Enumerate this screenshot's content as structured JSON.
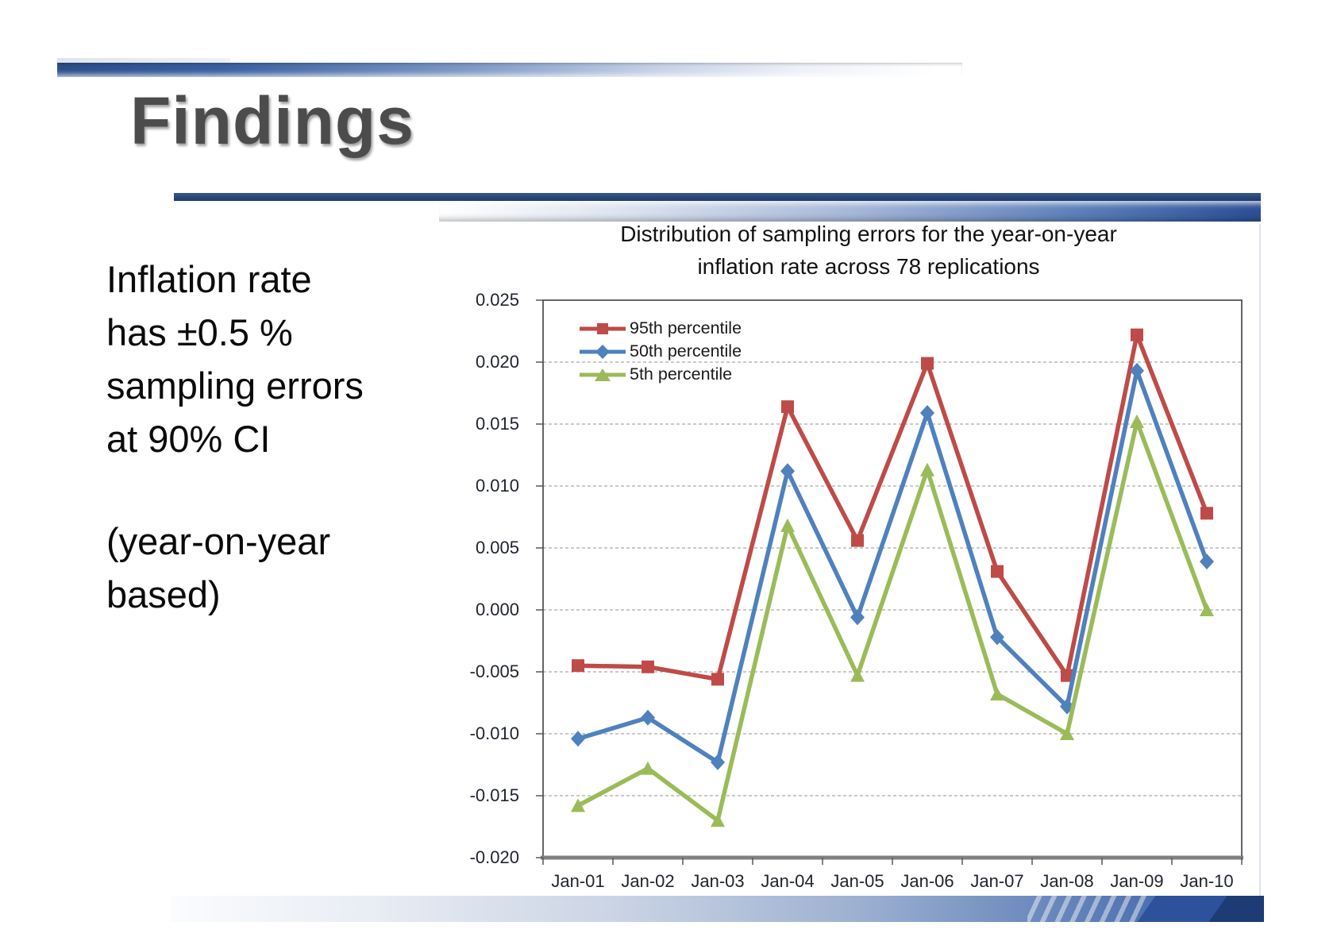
{
  "slide": {
    "title": "Findings",
    "body_text_1": {
      "lines": [
        "Inflation rate",
        "has ±0.5 %",
        "sampling errors",
        "at 90% CI"
      ]
    },
    "body_text_2": {
      "lines": [
        "(year-on-year",
        "based)"
      ]
    },
    "accent_colors": {
      "navy": "#1f3864",
      "mid_blue": "#2e5596",
      "light_blue": "#c6d1e6"
    }
  },
  "chart_data": {
    "type": "line",
    "title": "Distribution of sampling errors for the year-on-year inflation rate across 78 replications",
    "title_lines": [
      "Distribution of sampling errors for the year-on-year",
      "inflation rate across 78 replications"
    ],
    "categories": [
      "Jan-01",
      "Jan-02",
      "Jan-03",
      "Jan-04",
      "Jan-05",
      "Jan-06",
      "Jan-07",
      "Jan-08",
      "Jan-09",
      "Jan-10"
    ],
    "series": [
      {
        "name": "95th percentile",
        "color": "#be4b48",
        "marker": "square",
        "values": [
          -0.0045,
          -0.0046,
          -0.0056,
          0.0164,
          0.0056,
          0.0199,
          0.0031,
          -0.0053,
          0.0222,
          0.0078
        ]
      },
      {
        "name": "50th percentile",
        "color": "#4f81bd",
        "marker": "diamond",
        "values": [
          -0.0104,
          -0.0087,
          -0.0123,
          0.0112,
          -0.0006,
          0.0159,
          -0.0022,
          -0.0078,
          0.0193,
          0.0039
        ]
      },
      {
        "name": "5th percentile",
        "color": "#9bbb59",
        "marker": "triangle",
        "values": [
          -0.0158,
          -0.0128,
          -0.017,
          0.0068,
          -0.0053,
          0.0113,
          -0.0068,
          -0.01,
          0.0152,
          0.0
        ]
      }
    ],
    "ylim": [
      -0.02,
      0.025
    ],
    "yticks": [
      0.025,
      0.02,
      0.015,
      0.01,
      0.005,
      0.0,
      -0.005,
      -0.01,
      -0.015,
      -0.02
    ],
    "ytick_labels": [
      "0.025",
      "0.020",
      "0.015",
      "0.010",
      "0.005",
      "0.000",
      "-0.005",
      "-0.010",
      "-0.015",
      "-0.020"
    ],
    "grid": "horizontal-dashed",
    "legend_position": "top-left-inside"
  }
}
